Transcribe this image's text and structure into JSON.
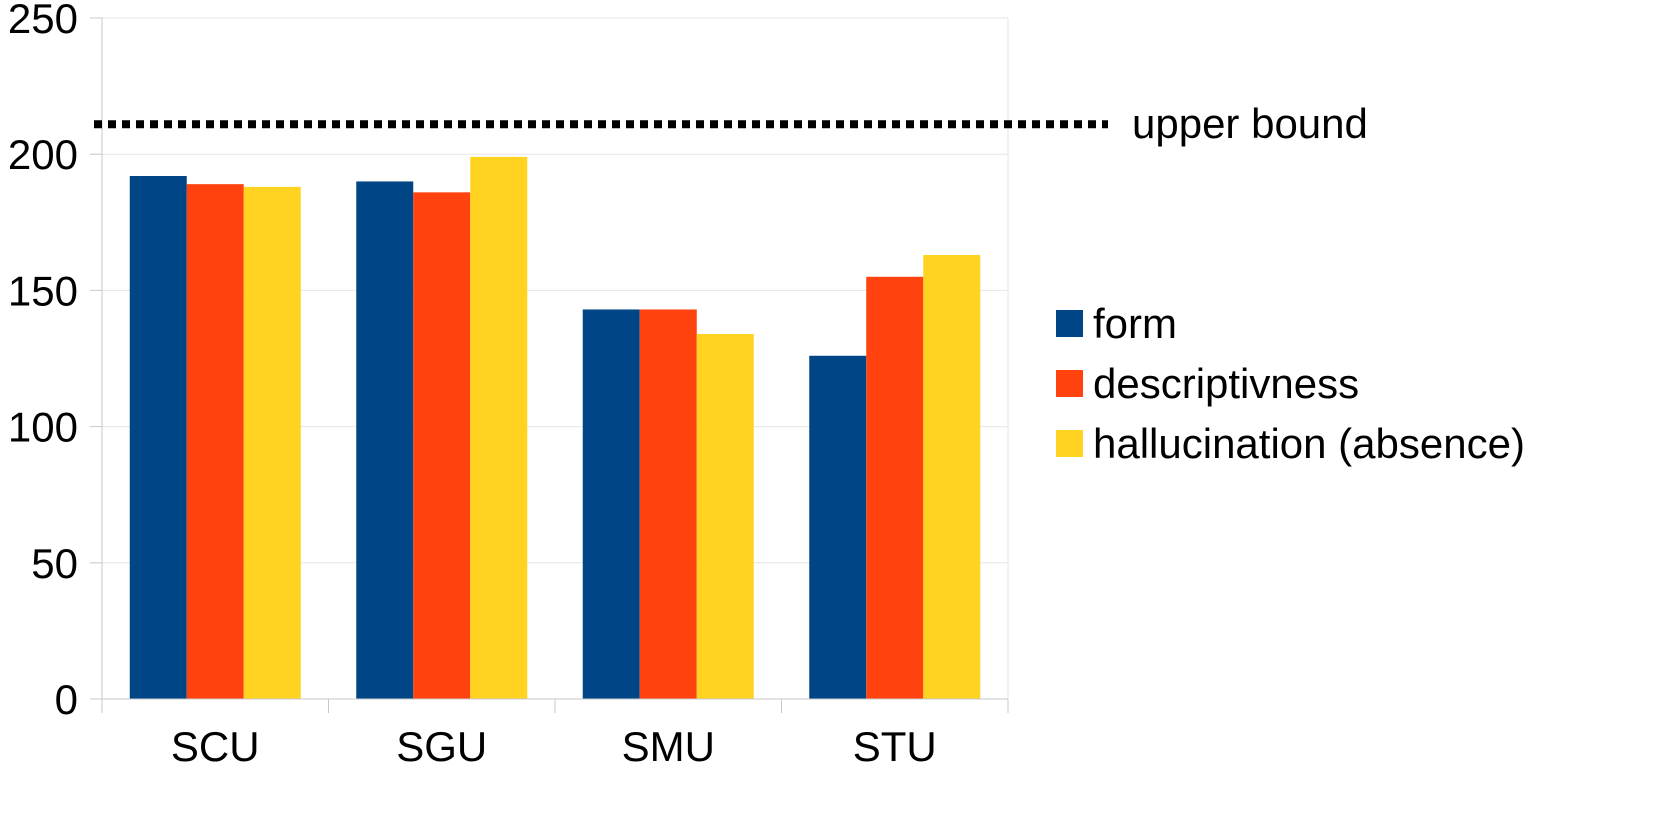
{
  "chart_data": {
    "type": "bar",
    "categories": [
      "SCU",
      "SGU",
      "SMU",
      "STU"
    ],
    "series": [
      {
        "name": "form",
        "color": "#004586",
        "values": [
          192,
          190,
          143,
          126
        ]
      },
      {
        "name": "descriptivness",
        "color": "#ff420e",
        "values": [
          189,
          186,
          143,
          155
        ]
      },
      {
        "name": "hallucination (absence)",
        "color": "#ffd320",
        "values": [
          188,
          199,
          134,
          163
        ]
      }
    ],
    "ylim": [
      0,
      250
    ],
    "yticks": [
      0,
      50,
      100,
      150,
      200,
      250
    ],
    "grid": true,
    "legend_position": "right",
    "reference_line": {
      "label": "upper bound",
      "value": 211,
      "style": "dotted"
    }
  }
}
